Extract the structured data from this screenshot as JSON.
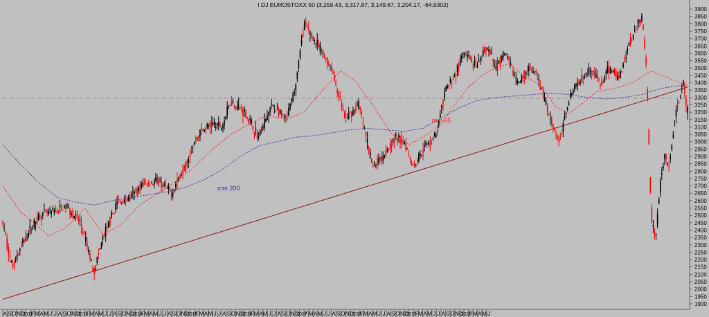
{
  "chart_data": {
    "type": "candlestick",
    "title": "I DJ EUROSTOXX 50 (3,259.43, 3,317.87, 3,149.67, 3,204.17, -64.9302)",
    "xlabel": "",
    "ylabel": "",
    "ylim": [
      1850,
      3925
    ],
    "y_ticks": [
      1900,
      1950,
      2000,
      2050,
      2100,
      2150,
      2200,
      2250,
      2300,
      2350,
      2400,
      2450,
      2500,
      2550,
      2600,
      2650,
      2700,
      2750,
      2800,
      2850,
      2900,
      2950,
      3000,
      3050,
      3100,
      3150,
      3200,
      3250,
      3300,
      3350,
      3400,
      3450,
      3500,
      3550,
      3600,
      3650,
      3700,
      3750,
      3800,
      3850,
      3900
    ],
    "grid": false,
    "x_labels": [
      "A",
      "S",
      "O",
      "N",
      "D",
      "2012",
      "F",
      "M",
      "A",
      "M",
      "J",
      "J",
      "A",
      "S",
      "O",
      "N",
      "D",
      "2013",
      "F",
      "M",
      "A",
      "M",
      "J",
      "J",
      "A",
      "S",
      "O",
      "N",
      "D",
      "2014",
      "F",
      "M",
      "A",
      "M",
      "J",
      "J",
      "A",
      "S",
      "O",
      "N",
      "D",
      "2015",
      "F",
      "M",
      "A",
      "M",
      "J",
      "J",
      "A",
      "S",
      "O",
      "N",
      "D",
      "2016",
      "F",
      "M",
      "A",
      "M",
      "J",
      "J",
      "A",
      "S",
      "O",
      "N",
      "D",
      "2017",
      "F",
      "M",
      "A",
      "M",
      "J",
      "J",
      "A",
      "S",
      "O",
      "N",
      "D",
      "2018",
      "F",
      "M",
      "A",
      "M",
      "J",
      "J",
      "A",
      "S",
      "O",
      "N",
      "D",
      "2019",
      "F",
      "M",
      "A",
      "M",
      "J",
      "J",
      "A",
      "S",
      "O",
      "N",
      "D",
      "2020",
      "F",
      "M",
      "A",
      "M",
      "J"
    ],
    "x_start": "2011-08",
    "price_path": [
      [
        0,
        2450
      ],
      [
        2,
        2150
      ],
      [
        5,
        2350
      ],
      [
        8,
        2500
      ],
      [
        11,
        2520
      ],
      [
        14,
        2560
      ],
      [
        17,
        2450
      ],
      [
        20,
        2120
      ],
      [
        22,
        2350
      ],
      [
        25,
        2580
      ],
      [
        28,
        2620
      ],
      [
        31,
        2720
      ],
      [
        34,
        2730
      ],
      [
        37,
        2650
      ],
      [
        40,
        2850
      ],
      [
        43,
        3060
      ],
      [
        46,
        3120
      ],
      [
        48,
        3100
      ],
      [
        50,
        3280
      ],
      [
        53,
        3200
      ],
      [
        56,
        3030
      ],
      [
        59,
        3250
      ],
      [
        62,
        3140
      ],
      [
        64,
        3350
      ],
      [
        66,
        3800
      ],
      [
        69,
        3650
      ],
      [
        72,
        3500
      ],
      [
        75,
        3150
      ],
      [
        78,
        3250
      ],
      [
        81,
        2830
      ],
      [
        83,
        2900
      ],
      [
        86,
        3020
      ],
      [
        88,
        3000
      ],
      [
        90,
        2830
      ],
      [
        92,
        2950
      ],
      [
        95,
        3050
      ],
      [
        97,
        3350
      ],
      [
        99,
        3450
      ],
      [
        101,
        3600
      ],
      [
        104,
        3500
      ],
      [
        106,
        3650
      ],
      [
        108,
        3500
      ],
      [
        110,
        3600
      ],
      [
        113,
        3390
      ],
      [
        115,
        3500
      ],
      [
        117,
        3450
      ],
      [
        120,
        3150
      ],
      [
        122,
        2990
      ],
      [
        124,
        3300
      ],
      [
        127,
        3450
      ],
      [
        129,
        3500
      ],
      [
        131,
        3380
      ],
      [
        133,
        3500
      ],
      [
        135,
        3430
      ],
      [
        137,
        3650
      ],
      [
        139,
        3800
      ],
      [
        140,
        3850
      ],
      [
        141,
        3500
      ],
      [
        142,
        2500
      ],
      [
        143,
        2350
      ],
      [
        144,
        2700
      ],
      [
        145,
        2900
      ],
      [
        146,
        2800
      ],
      [
        147,
        3100
      ],
      [
        148,
        3270
      ],
      [
        149,
        3390
      ],
      [
        150,
        3204
      ]
    ],
    "series": [
      {
        "name": "mm 65",
        "type": "line",
        "color": "#ff2020",
        "points": [
          [
            0,
            2700
          ],
          [
            4,
            2520
          ],
          [
            8,
            2420
          ],
          [
            10,
            2360
          ],
          [
            14,
            2420
          ],
          [
            18,
            2550
          ],
          [
            22,
            2370
          ],
          [
            26,
            2440
          ],
          [
            30,
            2570
          ],
          [
            34,
            2650
          ],
          [
            38,
            2730
          ],
          [
            42,
            2830
          ],
          [
            46,
            2950
          ],
          [
            50,
            3050
          ],
          [
            54,
            3120
          ],
          [
            58,
            3180
          ],
          [
            62,
            3150
          ],
          [
            66,
            3200
          ],
          [
            70,
            3350
          ],
          [
            74,
            3480
          ],
          [
            77,
            3420
          ],
          [
            81,
            3250
          ],
          [
            85,
            3060
          ],
          [
            89,
            2980
          ],
          [
            93,
            3050
          ],
          [
            96,
            3120
          ],
          [
            99,
            3250
          ],
          [
            102,
            3370
          ],
          [
            105,
            3450
          ],
          [
            108,
            3500
          ],
          [
            111,
            3530
          ],
          [
            114,
            3450
          ],
          [
            118,
            3380
          ],
          [
            121,
            3240
          ],
          [
            124,
            3190
          ],
          [
            127,
            3260
          ],
          [
            130,
            3340
          ],
          [
            134,
            3360
          ],
          [
            138,
            3400
          ],
          [
            142,
            3480
          ],
          [
            146,
            3430
          ],
          [
            150,
            3380
          ]
        ]
      },
      {
        "name": "mm 200",
        "type": "line",
        "color": "#3a2aa0",
        "points": [
          [
            0,
            2980
          ],
          [
            4,
            2840
          ],
          [
            8,
            2720
          ],
          [
            12,
            2620
          ],
          [
            16,
            2590
          ],
          [
            20,
            2570
          ],
          [
            24,
            2600
          ],
          [
            28,
            2620
          ],
          [
            32,
            2640
          ],
          [
            36,
            2660
          ],
          [
            40,
            2690
          ],
          [
            44,
            2740
          ],
          [
            48,
            2810
          ],
          [
            52,
            2900
          ],
          [
            56,
            2970
          ],
          [
            60,
            3000
          ],
          [
            64,
            3030
          ],
          [
            68,
            3040
          ],
          [
            72,
            3060
          ],
          [
            76,
            3080
          ],
          [
            80,
            3090
          ],
          [
            84,
            3080
          ],
          [
            88,
            3070
          ],
          [
            92,
            3090
          ],
          [
            96,
            3160
          ],
          [
            100,
            3230
          ],
          [
            104,
            3280
          ],
          [
            108,
            3300
          ],
          [
            112,
            3310
          ],
          [
            116,
            3320
          ],
          [
            120,
            3330
          ],
          [
            124,
            3320
          ],
          [
            128,
            3300
          ],
          [
            132,
            3290
          ],
          [
            136,
            3300
          ],
          [
            140,
            3320
          ],
          [
            144,
            3360
          ],
          [
            148,
            3380
          ],
          [
            150,
            3370
          ]
        ]
      },
      {
        "name": "trendline",
        "type": "line",
        "color": "#8a1a1a",
        "points": [
          [
            0,
            1930
          ],
          [
            150,
            3370
          ]
        ]
      },
      {
        "name": "reference",
        "type": "line",
        "color": "#909090",
        "points": [
          [
            0,
            3295
          ],
          [
            150,
            3295
          ]
        ]
      }
    ],
    "annotations": [
      {
        "text": "mm 200",
        "color": "#3a2aa0",
        "x": 47,
        "y": 2670
      },
      {
        "text": "mm 65",
        "color": "#ff2020",
        "x": 94,
        "y": 3130
      }
    ]
  }
}
